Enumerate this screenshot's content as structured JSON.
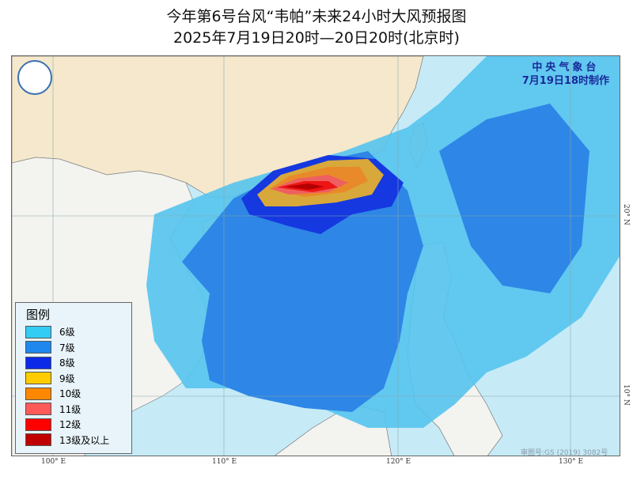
{
  "title": {
    "line1": "今年第6号台风“韦帕”未来24小时大风预报图",
    "line2": "2025年7月19日20时—20日20时(北京时)"
  },
  "agency": {
    "name": "中央气象台",
    "issued": "7月19日18时制作"
  },
  "legend": {
    "title": "图例",
    "items": [
      {
        "label": "6级",
        "color": "#33ccf5"
      },
      {
        "label": "7级",
        "color": "#1e88ee"
      },
      {
        "label": "8级",
        "color": "#0a2ae8"
      },
      {
        "label": "9级",
        "color": "#ffcc00"
      },
      {
        "label": "10级",
        "color": "#ff8800"
      },
      {
        "label": "11级",
        "color": "#ff5a5a"
      },
      {
        "label": "12级",
        "color": "#ff0000"
      },
      {
        "label": "13级及以上",
        "color": "#c00000"
      }
    ]
  },
  "axes": {
    "lon": [
      "100° E",
      "110° E",
      "120° E",
      "130° E"
    ],
    "lat": [
      "20° N",
      "10° N"
    ]
  },
  "approval": "审图号:GS (2019) 3082号"
}
